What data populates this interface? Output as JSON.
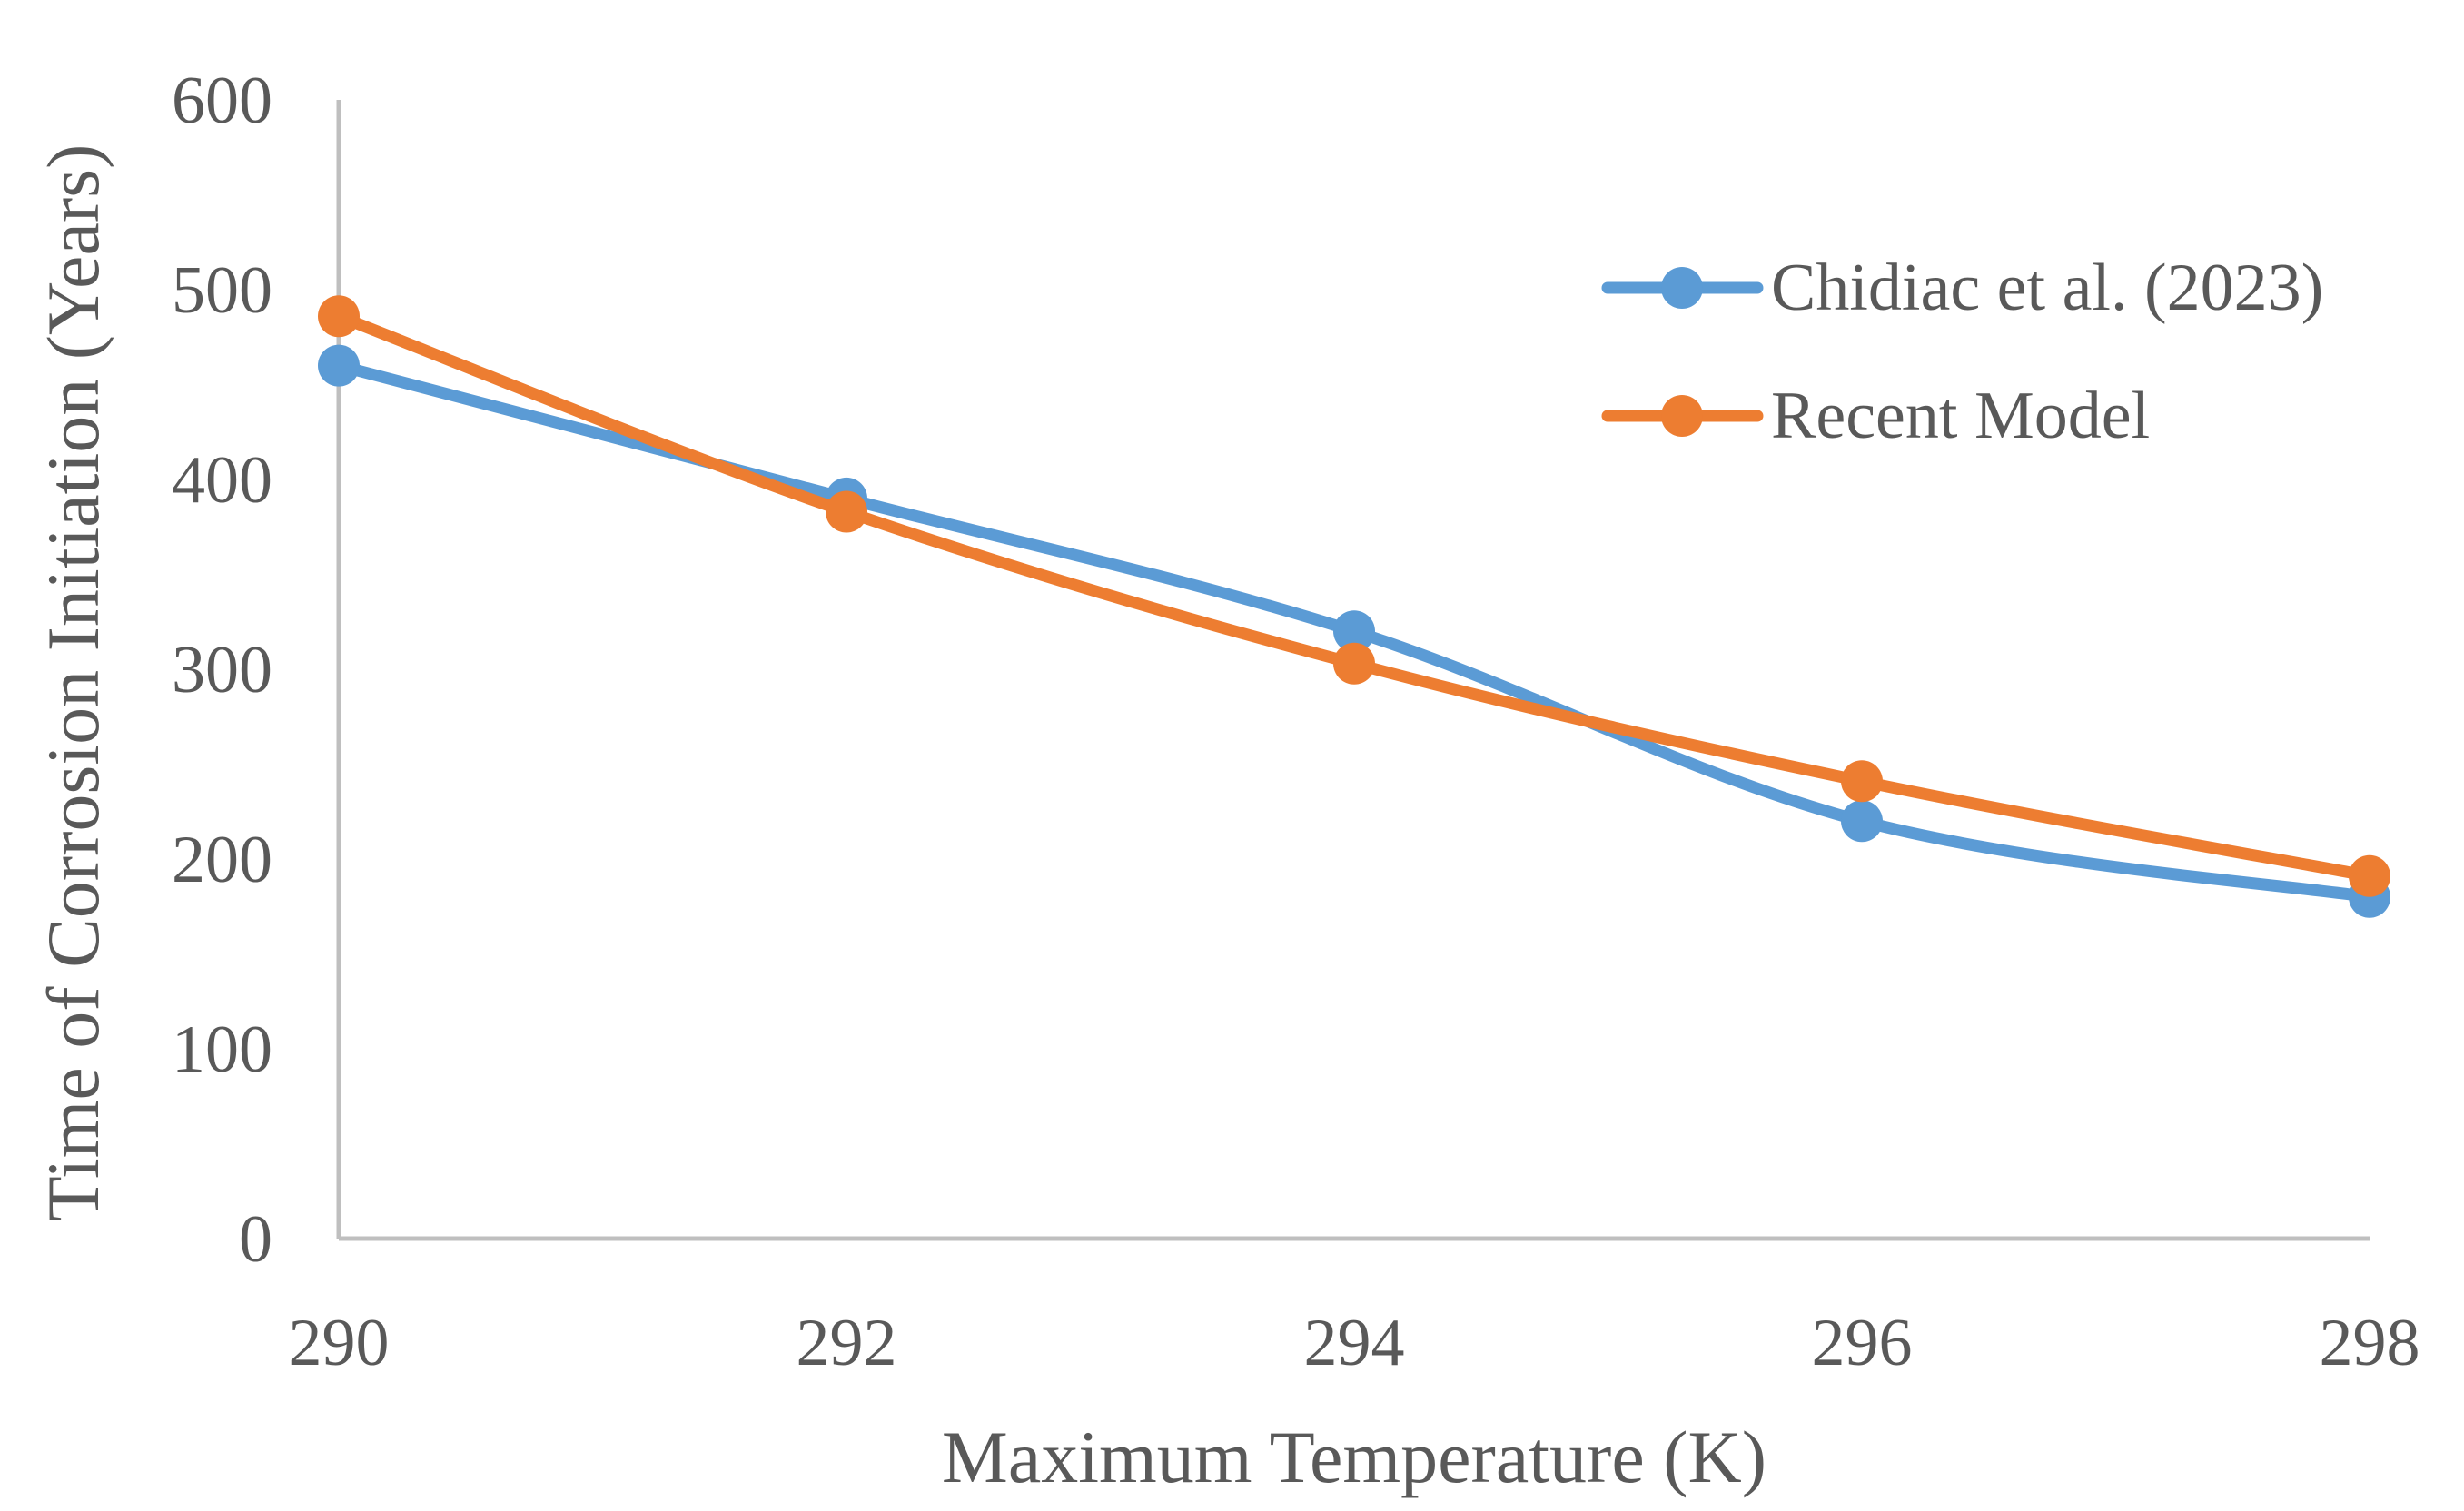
{
  "chart_data": {
    "type": "line",
    "title": "",
    "xlabel": "Maximum Temperature (K)",
    "ylabel": "Time of Corrosion Initiation (Years)",
    "x": [
      290,
      292,
      294,
      296,
      298
    ],
    "xlim": [
      290,
      298
    ],
    "ylim": [
      0,
      600
    ],
    "xticks": [
      "290",
      "292",
      "294",
      "296",
      "298"
    ],
    "yticks": [
      "0",
      "100",
      "200",
      "300",
      "400",
      "500",
      "600"
    ],
    "grid": false,
    "legend_position": "top-right",
    "smooth": true,
    "series": [
      {
        "name": "Chidiac et al. (2023)",
        "color": "#5B9BD5",
        "values": [
          460,
          390,
          320,
          220,
          180
        ]
      },
      {
        "name": "Recent Model",
        "color": "#ED7D31",
        "values": [
          486,
          383,
          303,
          241,
          191
        ]
      }
    ]
  },
  "colors": {
    "axis": "#BFBFBF",
    "text": "#595959",
    "background": "#FFFFFF"
  }
}
